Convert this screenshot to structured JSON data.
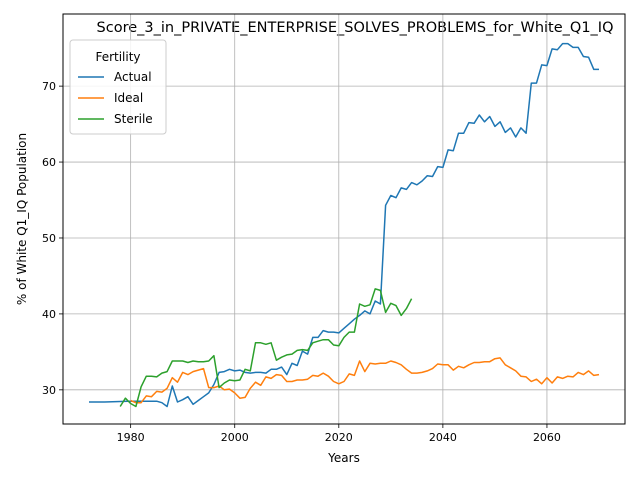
{
  "chart_data": {
    "type": "line",
    "title": "Score_3_in_PRIVATE_ENTERPRISE_SOLVES_PROBLEMS_for_White_Q1_IQ",
    "xlabel": "Years",
    "ylabel": "% of White Q1_IQ Population",
    "xlim": [
      1967,
      2075
    ],
    "ylim": [
      25.5,
      79.5
    ],
    "x_ticks": [
      1980,
      2000,
      2020,
      2040,
      2060
    ],
    "y_ticks": [
      30,
      40,
      50,
      60,
      70
    ],
    "grid": true,
    "legend": {
      "title": "Fertility",
      "placement": "upper-left"
    },
    "series": [
      {
        "name": "Actual",
        "color": "#1f77b4",
        "points": [
          [
            1972,
            28.4
          ],
          [
            1975,
            28.4
          ],
          [
            1980,
            28.5
          ],
          [
            1983,
            28.5
          ],
          [
            1985,
            28.5
          ],
          [
            1986,
            28.3
          ],
          [
            1987,
            27.8
          ],
          [
            1988,
            30.5
          ],
          [
            1989,
            28.4
          ],
          [
            1990,
            28.7
          ],
          [
            1991,
            29.1
          ],
          [
            1992,
            28.1
          ],
          [
            1993,
            28.6
          ],
          [
            1994,
            29.1
          ],
          [
            1995,
            29.6
          ],
          [
            1996,
            30.7
          ],
          [
            1997,
            32.3
          ],
          [
            1998,
            32.4
          ],
          [
            1999,
            32.7
          ],
          [
            2000,
            32.5
          ],
          [
            2001,
            32.6
          ],
          [
            2002,
            32.3
          ],
          [
            2003,
            32.2
          ],
          [
            2004,
            32.3
          ],
          [
            2005,
            32.3
          ],
          [
            2006,
            32.2
          ],
          [
            2007,
            32.7
          ],
          [
            2008,
            32.7
          ],
          [
            2009,
            33.0
          ],
          [
            2010,
            32.0
          ],
          [
            2011,
            33.5
          ],
          [
            2012,
            33.2
          ],
          [
            2013,
            35.1
          ],
          [
            2014,
            34.7
          ],
          [
            2015,
            36.9
          ],
          [
            2016,
            36.9
          ],
          [
            2017,
            37.8
          ],
          [
            2018,
            37.6
          ],
          [
            2019,
            37.6
          ],
          [
            2020,
            37.5
          ],
          [
            2021,
            38.1
          ],
          [
            2022,
            38.7
          ],
          [
            2023,
            39.3
          ],
          [
            2024,
            39.8
          ],
          [
            2025,
            40.4
          ],
          [
            2026,
            40.0
          ],
          [
            2027,
            41.7
          ],
          [
            2028,
            41.3
          ],
          [
            2029,
            54.3
          ],
          [
            2030,
            55.6
          ],
          [
            2031,
            55.3
          ],
          [
            2032,
            56.6
          ],
          [
            2033,
            56.4
          ],
          [
            2034,
            57.3
          ],
          [
            2035,
            57.0
          ],
          [
            2036,
            57.5
          ],
          [
            2037,
            58.2
          ],
          [
            2038,
            58.1
          ],
          [
            2039,
            59.4
          ],
          [
            2040,
            59.3
          ],
          [
            2041,
            61.6
          ],
          [
            2042,
            61.5
          ],
          [
            2043,
            63.8
          ],
          [
            2044,
            63.8
          ],
          [
            2045,
            65.2
          ],
          [
            2046,
            65.1
          ],
          [
            2047,
            66.2
          ],
          [
            2048,
            65.3
          ],
          [
            2049,
            66.0
          ],
          [
            2050,
            64.7
          ],
          [
            2051,
            65.3
          ],
          [
            2052,
            63.9
          ],
          [
            2053,
            64.5
          ],
          [
            2054,
            63.3
          ],
          [
            2055,
            64.5
          ],
          [
            2056,
            63.8
          ],
          [
            2057,
            70.4
          ],
          [
            2058,
            70.4
          ],
          [
            2059,
            72.8
          ],
          [
            2060,
            72.7
          ],
          [
            2061,
            74.9
          ],
          [
            2062,
            74.8
          ],
          [
            2063,
            75.6
          ],
          [
            2064,
            75.6
          ],
          [
            2065,
            75.1
          ],
          [
            2066,
            75.1
          ],
          [
            2067,
            73.9
          ],
          [
            2068,
            73.8
          ],
          [
            2069,
            72.2
          ],
          [
            2070,
            72.2
          ]
        ]
      },
      {
        "name": "Ideal",
        "color": "#ff7f0e",
        "points": [
          [
            1980,
            28.6
          ],
          [
            1981,
            28.3
          ],
          [
            1982,
            28.3
          ],
          [
            1983,
            29.2
          ],
          [
            1984,
            29.1
          ],
          [
            1985,
            29.8
          ],
          [
            1986,
            29.7
          ],
          [
            1987,
            30.2
          ],
          [
            1988,
            31.6
          ],
          [
            1989,
            31.0
          ],
          [
            1990,
            32.3
          ],
          [
            1991,
            32.0
          ],
          [
            1992,
            32.4
          ],
          [
            1993,
            32.6
          ],
          [
            1994,
            32.8
          ],
          [
            1995,
            30.3
          ],
          [
            1996,
            30.3
          ],
          [
            1997,
            30.5
          ],
          [
            1998,
            30.0
          ],
          [
            1999,
            30.1
          ],
          [
            2000,
            29.6
          ],
          [
            2001,
            28.9
          ],
          [
            2002,
            29.0
          ],
          [
            2003,
            30.2
          ],
          [
            2004,
            31.0
          ],
          [
            2005,
            30.6
          ],
          [
            2006,
            31.7
          ],
          [
            2007,
            31.5
          ],
          [
            2008,
            32.0
          ],
          [
            2009,
            31.9
          ],
          [
            2010,
            31.1
          ],
          [
            2011,
            31.1
          ],
          [
            2012,
            31.3
          ],
          [
            2013,
            31.3
          ],
          [
            2014,
            31.4
          ],
          [
            2015,
            31.9
          ],
          [
            2016,
            31.8
          ],
          [
            2017,
            32.2
          ],
          [
            2018,
            31.8
          ],
          [
            2019,
            31.1
          ],
          [
            2020,
            30.8
          ],
          [
            2021,
            31.1
          ],
          [
            2022,
            32.1
          ],
          [
            2023,
            31.9
          ],
          [
            2024,
            33.8
          ],
          [
            2025,
            32.4
          ],
          [
            2026,
            33.5
          ],
          [
            2027,
            33.4
          ],
          [
            2028,
            33.5
          ],
          [
            2029,
            33.5
          ],
          [
            2030,
            33.8
          ],
          [
            2031,
            33.6
          ],
          [
            2032,
            33.3
          ],
          [
            2033,
            32.7
          ],
          [
            2034,
            32.2
          ],
          [
            2035,
            32.2
          ],
          [
            2036,
            32.3
          ],
          [
            2037,
            32.5
          ],
          [
            2038,
            32.8
          ],
          [
            2039,
            33.4
          ],
          [
            2040,
            33.3
          ],
          [
            2041,
            33.3
          ],
          [
            2042,
            32.6
          ],
          [
            2043,
            33.1
          ],
          [
            2044,
            32.9
          ],
          [
            2045,
            33.3
          ],
          [
            2046,
            33.6
          ],
          [
            2047,
            33.6
          ],
          [
            2048,
            33.7
          ],
          [
            2049,
            33.7
          ],
          [
            2050,
            34.1
          ],
          [
            2051,
            34.2
          ],
          [
            2052,
            33.3
          ],
          [
            2053,
            32.9
          ],
          [
            2054,
            32.5
          ],
          [
            2055,
            31.8
          ],
          [
            2056,
            31.7
          ],
          [
            2057,
            31.1
          ],
          [
            2058,
            31.4
          ],
          [
            2059,
            30.8
          ],
          [
            2060,
            31.6
          ],
          [
            2061,
            30.9
          ],
          [
            2062,
            31.7
          ],
          [
            2063,
            31.5
          ],
          [
            2064,
            31.8
          ],
          [
            2065,
            31.7
          ],
          [
            2066,
            32.3
          ],
          [
            2067,
            32.0
          ],
          [
            2068,
            32.5
          ],
          [
            2069,
            31.9
          ],
          [
            2070,
            32.0
          ]
        ]
      },
      {
        "name": "Sterile",
        "color": "#2ca02c",
        "points": [
          [
            1978,
            27.8
          ],
          [
            1979,
            28.9
          ],
          [
            1980,
            28.2
          ],
          [
            1981,
            27.8
          ],
          [
            1982,
            30.4
          ],
          [
            1983,
            31.8
          ],
          [
            1984,
            31.8
          ],
          [
            1985,
            31.7
          ],
          [
            1986,
            32.2
          ],
          [
            1987,
            32.4
          ],
          [
            1988,
            33.8
          ],
          [
            1989,
            33.8
          ],
          [
            1990,
            33.8
          ],
          [
            1991,
            33.6
          ],
          [
            1992,
            33.8
          ],
          [
            1993,
            33.7
          ],
          [
            1994,
            33.7
          ],
          [
            1995,
            33.8
          ],
          [
            1996,
            34.5
          ],
          [
            1997,
            30.3
          ],
          [
            1998,
            30.9
          ],
          [
            1999,
            31.3
          ],
          [
            2000,
            31.2
          ],
          [
            2001,
            31.3
          ],
          [
            2002,
            32.7
          ],
          [
            2003,
            32.5
          ],
          [
            2004,
            36.2
          ],
          [
            2005,
            36.2
          ],
          [
            2006,
            36.0
          ],
          [
            2007,
            36.2
          ],
          [
            2008,
            33.9
          ],
          [
            2009,
            34.3
          ],
          [
            2010,
            34.6
          ],
          [
            2011,
            34.7
          ],
          [
            2012,
            35.2
          ],
          [
            2013,
            35.3
          ],
          [
            2014,
            35.2
          ],
          [
            2015,
            36.2
          ],
          [
            2016,
            36.4
          ],
          [
            2017,
            36.6
          ],
          [
            2018,
            36.6
          ],
          [
            2019,
            35.9
          ],
          [
            2020,
            35.8
          ],
          [
            2021,
            36.9
          ],
          [
            2022,
            37.6
          ],
          [
            2023,
            37.6
          ],
          [
            2024,
            41.3
          ],
          [
            2025,
            41.0
          ],
          [
            2026,
            41.2
          ],
          [
            2027,
            43.3
          ],
          [
            2028,
            43.1
          ],
          [
            2029,
            40.2
          ],
          [
            2030,
            41.4
          ],
          [
            2031,
            41.1
          ],
          [
            2032,
            39.8
          ],
          [
            2033,
            40.7
          ],
          [
            2034,
            42.0
          ]
        ]
      }
    ]
  }
}
